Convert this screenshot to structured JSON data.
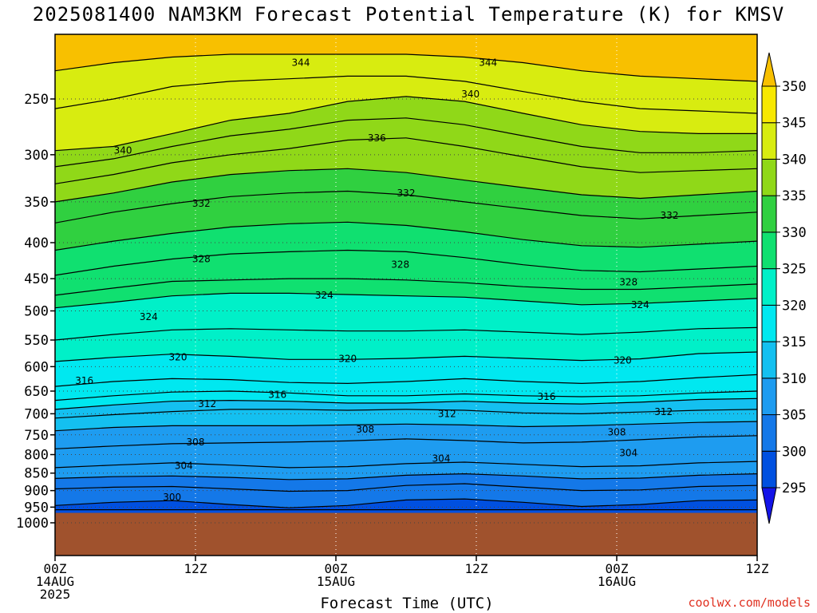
{
  "title": "2025081400 NAM3KM Forecast Potential Temperature (K) for KMSV",
  "xlabel": "Forecast Time (UTC)",
  "credit": "coolwx.com/models",
  "chart_data": {
    "type": "heatmap",
    "title": "2025081400 NAM3KM Forecast Potential Temperature (K) for KMSV",
    "xlabel": "Forecast Time (UTC)",
    "ylabel": "",
    "x_ticks": [
      {
        "hour": 0,
        "lines": [
          "00Z",
          "14AUG",
          "2025"
        ]
      },
      {
        "hour": 12,
        "lines": [
          "12Z"
        ]
      },
      {
        "hour": 24,
        "lines": [
          "00Z",
          "15AUG"
        ]
      },
      {
        "hour": 36,
        "lines": [
          "12Z"
        ]
      },
      {
        "hour": 48,
        "lines": [
          "00Z",
          "16AUG"
        ]
      },
      {
        "hour": 60,
        "lines": [
          "12Z"
        ]
      }
    ],
    "xlim": [
      0,
      60
    ],
    "y_ticks": [
      250,
      300,
      350,
      400,
      450,
      500,
      550,
      600,
      650,
      700,
      750,
      800,
      850,
      900,
      950,
      1000
    ],
    "ylim": [
      200,
      1050
    ],
    "y_scale": "log-pressure (inverted)",
    "surface_pressure": 968,
    "colorbar": {
      "levels": [
        295,
        300,
        305,
        310,
        315,
        320,
        325,
        330,
        335,
        340,
        345,
        350
      ],
      "colors": [
        "#1414e8",
        "#0050e0",
        "#1478e8",
        "#1e9cf0",
        "#14c0f0",
        "#00e8f0",
        "#00f0c8",
        "#10e070",
        "#30d040",
        "#90d818",
        "#d8ec10",
        "#f8e800",
        "#f8c000"
      ],
      "labels": [
        "295",
        "300",
        "305",
        "310",
        "315",
        "320",
        "325",
        "330",
        "335",
        "340",
        "345",
        "350"
      ]
    },
    "contour_interval": 2,
    "contours": [
      {
        "value": 298,
        "p": [
          958,
          958,
          958,
          958,
          958,
          958,
          958,
          958,
          958,
          958,
          958,
          958,
          958
        ],
        "labeled": false
      },
      {
        "value": 300,
        "p": [
          945,
          935,
          930,
          942,
          952,
          945,
          928,
          925,
          935,
          948,
          942,
          930,
          928
        ],
        "labeled": true
      },
      {
        "value": 302,
        "p": [
          895,
          890,
          888,
          895,
          902,
          900,
          885,
          880,
          890,
          900,
          898,
          888,
          885
        ],
        "labeled": false
      },
      {
        "value": 304,
        "p": [
          865,
          860,
          858,
          862,
          868,
          866,
          856,
          852,
          858,
          866,
          864,
          856,
          852
        ],
        "labeled": true
      },
      {
        "value": 306,
        "p": [
          835,
          828,
          822,
          828,
          835,
          832,
          824,
          820,
          826,
          832,
          830,
          822,
          818
        ],
        "labeled": false
      },
      {
        "value": 308,
        "p": [
          785,
          778,
          772,
          770,
          768,
          765,
          760,
          764,
          770,
          768,
          762,
          755,
          752
        ],
        "labeled": true
      },
      {
        "value": 310,
        "p": [
          740,
          732,
          728,
          728,
          728,
          726,
          724,
          726,
          730,
          728,
          724,
          720,
          718
        ],
        "labeled": false
      },
      {
        "value": 312,
        "p": [
          710,
          702,
          695,
          690,
          690,
          692,
          690,
          692,
          698,
          700,
          696,
          692,
          690
        ],
        "labeled": true
      },
      {
        "value": 314,
        "p": [
          690,
          680,
          672,
          670,
          672,
          676,
          676,
          672,
          676,
          678,
          674,
          668,
          666
        ],
        "labeled": false
      },
      {
        "value": 316,
        "p": [
          670,
          660,
          652,
          650,
          654,
          660,
          660,
          656,
          660,
          662,
          660,
          654,
          650
        ],
        "labeled": true
      },
      {
        "value": 318,
        "p": [
          640,
          630,
          624,
          626,
          632,
          634,
          630,
          624,
          630,
          634,
          630,
          622,
          616
        ],
        "labeled": false
      },
      {
        "value": 320,
        "p": [
          590,
          582,
          576,
          580,
          586,
          586,
          584,
          580,
          584,
          588,
          585,
          575,
          572
        ],
        "labeled": true
      },
      {
        "value": 322,
        "p": [
          550,
          540,
          532,
          530,
          532,
          534,
          534,
          532,
          536,
          540,
          536,
          530,
          528
        ],
        "labeled": false
      },
      {
        "value": 324,
        "p": [
          495,
          486,
          476,
          472,
          472,
          474,
          476,
          478,
          484,
          490,
          488,
          484,
          480
        ],
        "labeled": true
      },
      {
        "value": 326,
        "p": [
          475,
          464,
          454,
          452,
          450,
          450,
          452,
          456,
          462,
          466,
          466,
          462,
          458
        ],
        "labeled": false
      },
      {
        "value": 328,
        "p": [
          445,
          432,
          422,
          415,
          412,
          410,
          412,
          420,
          430,
          438,
          440,
          436,
          432
        ],
        "labeled": true
      },
      {
        "value": 330,
        "p": [
          410,
          398,
          388,
          380,
          376,
          374,
          378,
          386,
          396,
          404,
          406,
          402,
          398
        ],
        "labeled": false
      },
      {
        "value": 332,
        "p": [
          375,
          362,
          352,
          344,
          340,
          338,
          342,
          350,
          358,
          366,
          370,
          366,
          362
        ],
        "labeled": true
      },
      {
        "value": 334,
        "p": [
          350,
          340,
          328,
          320,
          316,
          314,
          318,
          326,
          334,
          342,
          346,
          342,
          338
        ],
        "labeled": false
      },
      {
        "value": 336,
        "p": [
          330,
          320,
          308,
          300,
          294,
          286,
          284,
          292,
          302,
          312,
          318,
          316,
          314
        ],
        "labeled": true
      },
      {
        "value": 338,
        "p": [
          312,
          304,
          292,
          282,
          276,
          268,
          266,
          272,
          282,
          292,
          298,
          298,
          296
        ],
        "labeled": false
      },
      {
        "value": 340,
        "p": [
          296,
          292,
          280,
          268,
          262,
          252,
          248,
          252,
          262,
          272,
          278,
          280,
          280
        ],
        "labeled": true
      },
      {
        "value": 342,
        "p": [
          258,
          250,
          240,
          236,
          234,
          232,
          232,
          236,
          244,
          252,
          258,
          260,
          262
        ],
        "labeled": false
      },
      {
        "value": 344,
        "p": [
          228,
          222,
          218,
          216,
          216,
          216,
          216,
          218,
          222,
          228,
          232,
          234,
          236
        ],
        "labeled": true
      }
    ],
    "contour_hours": [
      0,
      5,
      10,
      15,
      20,
      25,
      30,
      35,
      40,
      45,
      50,
      55,
      60
    ],
    "contour_labels": [
      {
        "text": "344",
        "hour": 21,
        "p": 222
      },
      {
        "text": "344",
        "hour": 37,
        "p": 222
      },
      {
        "text": "340",
        "hour": 35.5,
        "p": 246
      },
      {
        "text": "336",
        "hour": 27.5,
        "p": 284
      },
      {
        "text": "340",
        "hour": 5.8,
        "p": 296
      },
      {
        "text": "332",
        "hour": 30,
        "p": 340
      },
      {
        "text": "332",
        "hour": 12.5,
        "p": 352
      },
      {
        "text": "332",
        "hour": 52.5,
        "p": 366
      },
      {
        "text": "328",
        "hour": 12.5,
        "p": 422
      },
      {
        "text": "328",
        "hour": 29.5,
        "p": 430
      },
      {
        "text": "328",
        "hour": 49,
        "p": 455
      },
      {
        "text": "324",
        "hour": 23,
        "p": 475
      },
      {
        "text": "324",
        "hour": 50,
        "p": 490
      },
      {
        "text": "324",
        "hour": 8,
        "p": 510
      },
      {
        "text": "320",
        "hour": 10.5,
        "p": 582
      },
      {
        "text": "320",
        "hour": 25,
        "p": 585
      },
      {
        "text": "320",
        "hour": 48.5,
        "p": 588
      },
      {
        "text": "316",
        "hour": 2.5,
        "p": 628
      },
      {
        "text": "316",
        "hour": 19,
        "p": 658
      },
      {
        "text": "316",
        "hour": 42,
        "p": 662
      },
      {
        "text": "312",
        "hour": 13,
        "p": 678
      },
      {
        "text": "312",
        "hour": 33.5,
        "p": 700
      },
      {
        "text": "312",
        "hour": 52,
        "p": 696
      },
      {
        "text": "308",
        "hour": 26.5,
        "p": 737
      },
      {
        "text": "308",
        "hour": 48,
        "p": 744
      },
      {
        "text": "308",
        "hour": 12,
        "p": 768
      },
      {
        "text": "304",
        "hour": 49,
        "p": 796
      },
      {
        "text": "304",
        "hour": 33,
        "p": 810
      },
      {
        "text": "304",
        "hour": 11,
        "p": 830
      },
      {
        "text": "300",
        "hour": 10,
        "p": 920
      }
    ],
    "grid": true
  }
}
